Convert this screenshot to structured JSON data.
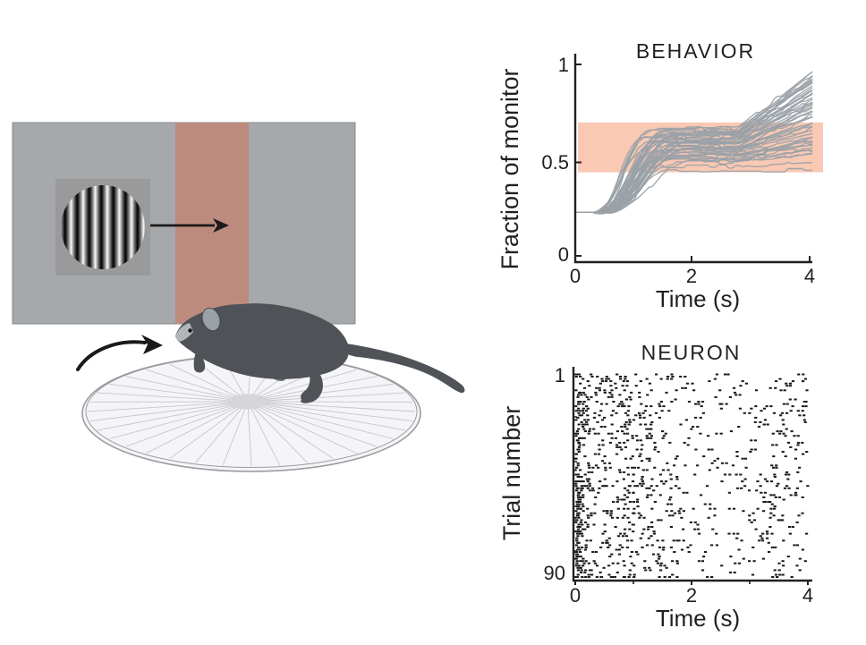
{
  "figure": {
    "background": "#ffffff",
    "text_color": "#231f20"
  },
  "diagram": {
    "monitor_color": "#a6a9ac",
    "monitor_edge": "#86898c",
    "target_zone_color": "#bd8b7d",
    "grating_backdrop_color": "#9a9a9a",
    "grating_light": "#fafafa",
    "grating_dark": "#000000",
    "arrow_color": "#1a1a1a",
    "mouse_body_color": "#4f5357",
    "mouse_ear_color": "#9aa0a8",
    "mouse_muzzle_color": "#b2b6ba",
    "mouse_far_paw_color": "#6f7377",
    "wheel_fill": "#f5f5f7",
    "wheel_rim": "#9b9ba0",
    "wheel_spokes": "#c6c6cc",
    "wheel_hub": "#d6d6da"
  },
  "chart_data": [
    {
      "type": "line",
      "subtype": "cumulative-behavior-trajectories",
      "title": "BEHAVIOR",
      "xlabel": "Time (s)",
      "ylabel": "Fraction of monitor",
      "xlim": [
        0,
        4.1
      ],
      "ylim": [
        0,
        1
      ],
      "xticks": [
        0,
        2,
        4
      ],
      "xticklabels": [
        "0",
        "2",
        "4"
      ],
      "yticks": [
        0,
        0.5,
        1
      ],
      "yticklabels": [
        "0",
        "0.5",
        "1"
      ],
      "grid": false,
      "legend": "none",
      "line_color": "#9aa1a7",
      "axis_color": "#231f20",
      "start_value": 0.25,
      "reward_zone": {
        "ymin": 0.45,
        "ymax": 0.7,
        "color": "#f9c9b3"
      },
      "trials_rise_plateau_final": [
        [
          0.35,
          0.62,
          0.93
        ],
        [
          0.4,
          0.58,
          0.85
        ],
        [
          0.45,
          0.55,
          0.8
        ],
        [
          0.3,
          0.65,
          0.9
        ],
        [
          0.5,
          0.6,
          0.75
        ],
        [
          0.38,
          0.52,
          0.62
        ],
        [
          0.42,
          0.66,
          0.95
        ],
        [
          0.55,
          0.5,
          0.55
        ],
        [
          0.33,
          0.63,
          0.88
        ],
        [
          0.47,
          0.57,
          0.7
        ],
        [
          0.36,
          0.6,
          0.82
        ],
        [
          0.52,
          0.54,
          0.6
        ],
        [
          0.31,
          0.67,
          0.92
        ],
        [
          0.44,
          0.59,
          0.78
        ],
        [
          0.58,
          0.51,
          0.57
        ],
        [
          0.34,
          0.64,
          0.86
        ],
        [
          0.4,
          0.56,
          0.68
        ],
        [
          0.49,
          0.61,
          0.8
        ],
        [
          0.37,
          0.53,
          0.58
        ],
        [
          0.43,
          0.65,
          0.9
        ],
        [
          0.32,
          0.58,
          0.72
        ],
        [
          0.54,
          0.62,
          0.84
        ],
        [
          0.39,
          0.55,
          0.63
        ],
        [
          0.46,
          0.6,
          0.76
        ],
        [
          0.35,
          0.66,
          0.94
        ],
        [
          0.51,
          0.52,
          0.56
        ],
        [
          0.41,
          0.63,
          0.87
        ],
        [
          0.48,
          0.57,
          0.66
        ],
        [
          0.33,
          0.61,
          0.79
        ],
        [
          0.56,
          0.54,
          0.6
        ],
        [
          0.38,
          0.65,
          0.91
        ],
        [
          0.45,
          0.58,
          0.7
        ],
        [
          0.3,
          0.62,
          0.83
        ],
        [
          0.5,
          0.55,
          0.61
        ],
        [
          0.42,
          0.67,
          0.96
        ],
        [
          0.36,
          0.59,
          0.74
        ],
        [
          0.53,
          0.51,
          0.54
        ],
        [
          0.44,
          0.64,
          0.88
        ],
        [
          0.4,
          0.56,
          0.64
        ],
        [
          0.47,
          0.6,
          0.77
        ],
        [
          0.34,
          0.63,
          0.85
        ],
        [
          0.57,
          0.53,
          0.57
        ],
        [
          0.39,
          0.66,
          0.92
        ],
        [
          0.43,
          0.57,
          0.67
        ],
        [
          0.31,
          0.6,
          0.73
        ],
        [
          0.49,
          0.46,
          0.46
        ],
        [
          0.37,
          0.48,
          0.5
        ],
        [
          0.45,
          0.61,
          0.81
        ]
      ]
    },
    {
      "type": "scatter",
      "subtype": "spike-raster",
      "title": "NEURON",
      "xlabel": "Time (s)",
      "ylabel": "Trial number",
      "xlim": [
        0,
        4
      ],
      "n_trials": 90,
      "xticks": [
        0,
        2,
        4
      ],
      "xticklabels": [
        "0",
        "2",
        "4"
      ],
      "yticklabels": [
        "1",
        "90"
      ],
      "grid": false,
      "spike_color": "#1a1a1a",
      "axis_color": "#231f20",
      "onset_response_prob": 0.8,
      "high_rate_trials": [
        50,
        90
      ],
      "bin_width_s": 0.25,
      "rate_per_bin": [
        1.1,
        0.55,
        0.6,
        0.65,
        0.6,
        0.5,
        0.35,
        0.3,
        0.22,
        0.2,
        0.18,
        0.18,
        0.28,
        0.35,
        0.38,
        0.3
      ]
    }
  ]
}
